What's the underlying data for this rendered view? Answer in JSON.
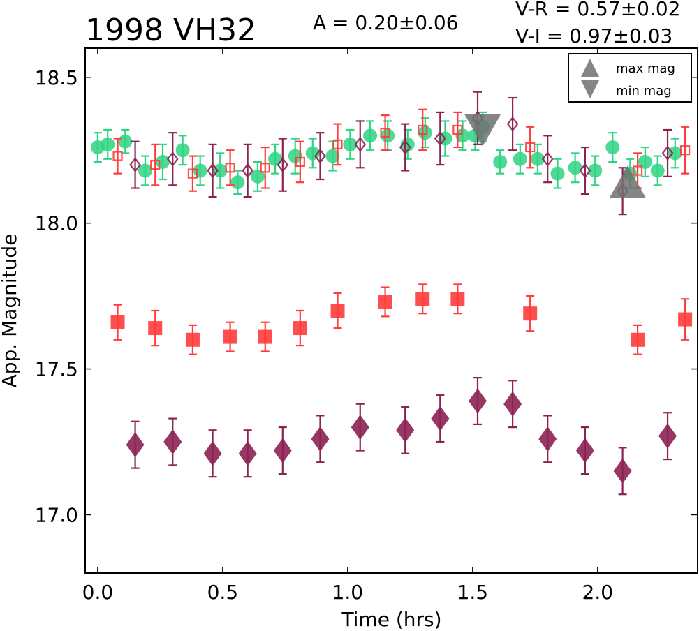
{
  "chart_data": {
    "type": "scatter",
    "title": "1998 VH32",
    "annotations": {
      "amplitude": "A  = 0.20±0.06",
      "v_minus_r": "V-R = 0.57±0.02",
      "v_minus_i": "V-I  = 0.97±0.03"
    },
    "xlabel": "Time (hrs)",
    "ylabel": "App. Magnitude",
    "xlim": [
      -0.05,
      2.4
    ],
    "ylim": [
      18.6,
      16.8
    ],
    "y_inverted": true,
    "xticks": [
      0.0,
      0.5,
      1.0,
      1.5,
      2.0
    ],
    "xtick_labels": [
      "0.0",
      "0.5",
      "1.0",
      "1.5",
      "2.0"
    ],
    "yticks": [
      17.0,
      17.5,
      18.0,
      18.5
    ],
    "ytick_labels": [
      "17.0",
      "17.5",
      "18.0",
      "18.5"
    ],
    "grid": false,
    "legend": {
      "placement": "top-right",
      "entries": [
        {
          "label": "max mag",
          "marker": "triangle-up",
          "color": "#707070"
        },
        {
          "label": "min mag",
          "marker": "triangle-down",
          "color": "#707070"
        }
      ]
    },
    "series": [
      {
        "marker": "diamond",
        "filled": true,
        "color": "#8b2252",
        "x": [
          0.15,
          0.3,
          0.46,
          0.6,
          0.74,
          0.89,
          1.05,
          1.23,
          1.37,
          1.52,
          1.66,
          1.8,
          1.95,
          2.1,
          2.28
        ],
        "y": [
          17.24,
          17.25,
          17.21,
          17.21,
          17.22,
          17.26,
          17.3,
          17.29,
          17.33,
          17.39,
          17.38,
          17.26,
          17.22,
          17.15,
          17.27
        ],
        "err": [
          0.08,
          0.08,
          0.08,
          0.08,
          0.08,
          0.08,
          0.08,
          0.08,
          0.08,
          0.08,
          0.08,
          0.08,
          0.08,
          0.08,
          0.08
        ]
      },
      {
        "marker": "square",
        "filled": true,
        "color": "#ff3b3b",
        "x": [
          0.08,
          0.23,
          0.38,
          0.53,
          0.67,
          0.81,
          0.96,
          1.15,
          1.3,
          1.44,
          1.73,
          2.16,
          2.35
        ],
        "y": [
          17.66,
          17.64,
          17.6,
          17.61,
          17.61,
          17.64,
          17.7,
          17.73,
          17.74,
          17.74,
          17.69,
          17.6,
          17.67
        ],
        "err": [
          0.06,
          0.06,
          0.05,
          0.05,
          0.05,
          0.06,
          0.06,
          0.05,
          0.05,
          0.05,
          0.06,
          0.05,
          0.07
        ]
      },
      {
        "marker": "circle",
        "filled": true,
        "color": "#2ed483",
        "x": [
          0.0,
          0.04,
          0.11,
          0.19,
          0.26,
          0.34,
          0.41,
          0.49,
          0.56,
          0.64,
          0.71,
          0.79,
          0.86,
          0.94,
          1.01,
          1.09,
          1.16,
          1.24,
          1.31,
          1.39,
          1.46,
          1.51,
          1.54,
          1.61,
          1.69,
          1.76,
          1.84,
          1.91,
          1.99,
          2.06,
          2.13,
          2.19,
          2.24,
          2.31
        ],
        "y": [
          18.26,
          18.27,
          18.28,
          18.18,
          18.21,
          18.25,
          18.18,
          18.18,
          18.14,
          18.16,
          18.22,
          18.23,
          18.24,
          18.23,
          18.27,
          18.3,
          18.3,
          18.27,
          18.31,
          18.29,
          18.3,
          18.3,
          18.33,
          18.21,
          18.22,
          18.22,
          18.17,
          18.19,
          18.18,
          18.26,
          18.17,
          18.21,
          18.18,
          18.24
        ],
        "err": [
          0.05,
          0.05,
          0.04,
          0.05,
          0.06,
          0.05,
          0.05,
          0.06,
          0.04,
          0.05,
          0.05,
          0.06,
          0.05,
          0.05,
          0.05,
          0.05,
          0.05,
          0.05,
          0.05,
          0.06,
          0.05,
          0.05,
          0.05,
          0.04,
          0.05,
          0.05,
          0.05,
          0.05,
          0.05,
          0.05,
          0.05,
          0.05,
          0.05,
          0.05
        ]
      },
      {
        "marker": "square",
        "filled": false,
        "color": "#ff3b3b",
        "x": [
          0.08,
          0.23,
          0.38,
          0.53,
          0.67,
          0.81,
          0.96,
          1.15,
          1.3,
          1.44,
          1.73,
          2.16,
          2.35
        ],
        "y": [
          18.23,
          18.2,
          18.17,
          18.19,
          18.19,
          18.21,
          18.27,
          18.31,
          18.32,
          18.32,
          18.26,
          18.18,
          18.25
        ],
        "err": [
          0.06,
          0.07,
          0.06,
          0.06,
          0.07,
          0.07,
          0.07,
          0.06,
          0.07,
          0.06,
          0.07,
          0.06,
          0.08
        ]
      },
      {
        "marker": "diamond",
        "filled": false,
        "color": "#8b2252",
        "x": [
          0.15,
          0.3,
          0.46,
          0.6,
          0.74,
          0.89,
          1.05,
          1.23,
          1.37,
          1.52,
          1.66,
          1.8,
          1.95,
          2.1,
          2.28
        ],
        "y": [
          18.2,
          18.22,
          18.18,
          18.18,
          18.2,
          18.23,
          18.27,
          18.26,
          18.29,
          18.36,
          18.34,
          18.22,
          18.18,
          18.11,
          18.24
        ],
        "err": [
          0.08,
          0.09,
          0.09,
          0.09,
          0.09,
          0.08,
          0.08,
          0.08,
          0.09,
          0.09,
          0.09,
          0.08,
          0.08,
          0.08,
          0.08
        ]
      }
    ],
    "extrema": [
      {
        "label": "max mag",
        "x": 2.12,
        "y": 18.13,
        "marker": "triangle-up",
        "color": "#707070"
      },
      {
        "label": "min mag",
        "x": 1.54,
        "y": 18.33,
        "marker": "triangle-down",
        "color": "#707070"
      }
    ]
  }
}
